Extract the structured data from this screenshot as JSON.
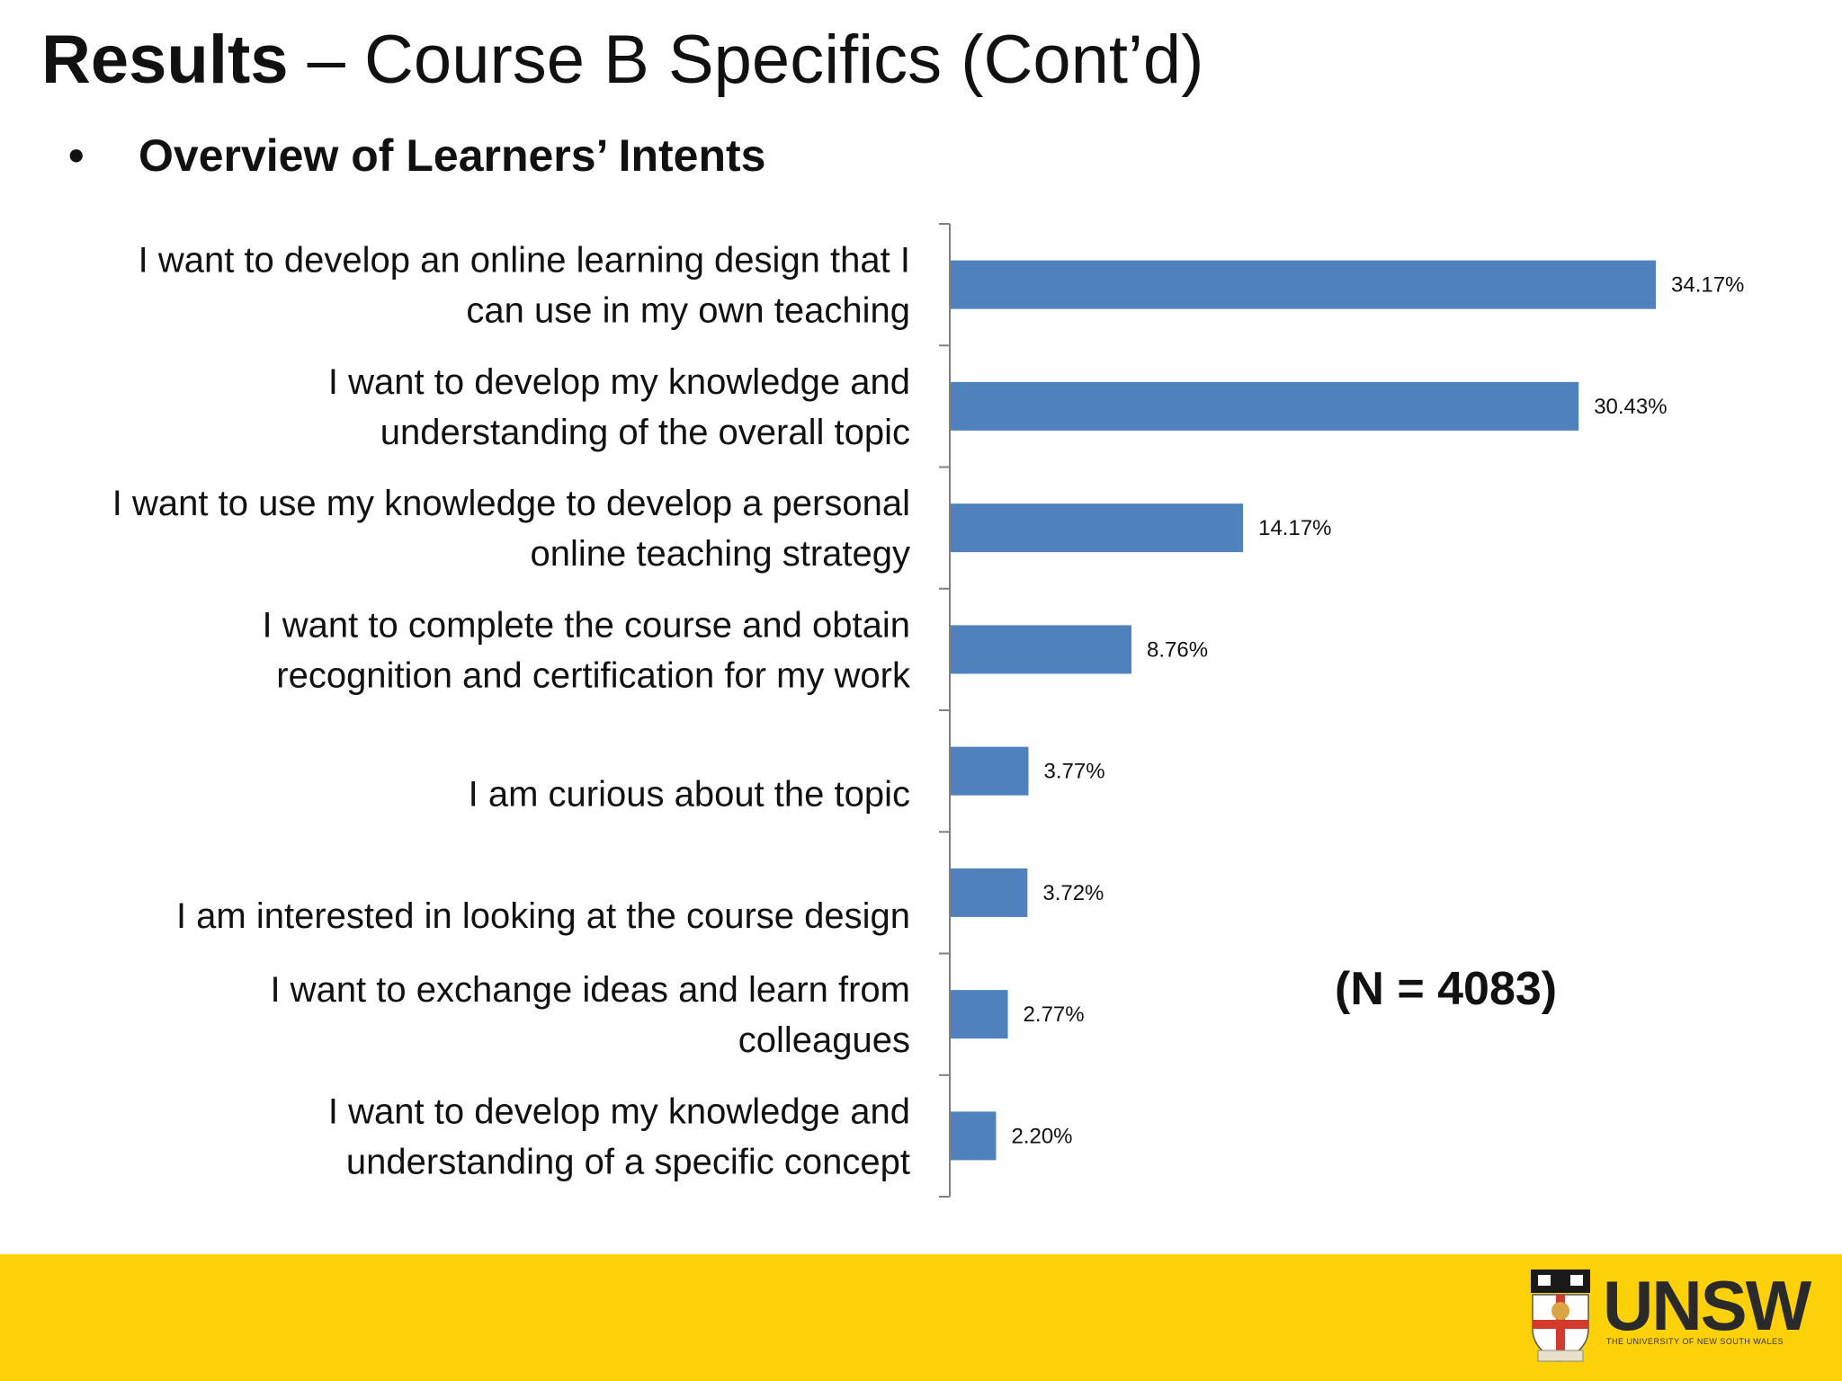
{
  "slide": {
    "title_bold": "Results",
    "title_rest": " – Course B Specifics (Cont’d)",
    "bullet_symbol": "•",
    "bullet_text": "Overview of Learners’ Intents",
    "sample_size": "(N = 4083)"
  },
  "footer": {
    "logo_text": "UNSW",
    "logo_subtext": "THE UNIVERSITY OF NEW SOUTH WALES",
    "band_color": "#FDD10A"
  },
  "chart_data": {
    "type": "bar",
    "orientation": "horizontal",
    "categories": [
      [
        "I want to develop an online learning design that I",
        "can use in my own teaching"
      ],
      [
        "I want to develop my knowledge and",
        "understanding of the overall topic"
      ],
      [
        "I want to use my knowledge to develop a personal",
        "online teaching strategy"
      ],
      [
        "I want to complete the course and obtain",
        "recognition and certification for my work"
      ],
      [
        "I am curious about the topic"
      ],
      [
        "I am interested in looking at the course design"
      ],
      [
        "I want to exchange ideas and learn from",
        "colleagues"
      ],
      [
        "I want to develop my knowledge and",
        "understanding of a specific concept"
      ]
    ],
    "values": [
      34.17,
      30.43,
      14.17,
      8.76,
      3.77,
      3.72,
      2.77,
      2.2
    ],
    "value_labels": [
      "34.17%",
      "30.43%",
      "14.17%",
      "8.76%",
      "3.77%",
      "3.72%",
      "2.77%",
      "2.20%"
    ],
    "xlim": [
      0,
      40
    ],
    "bar_color": "#4F81BD",
    "axis_color": "#808080",
    "grid": false,
    "legend": "none"
  }
}
